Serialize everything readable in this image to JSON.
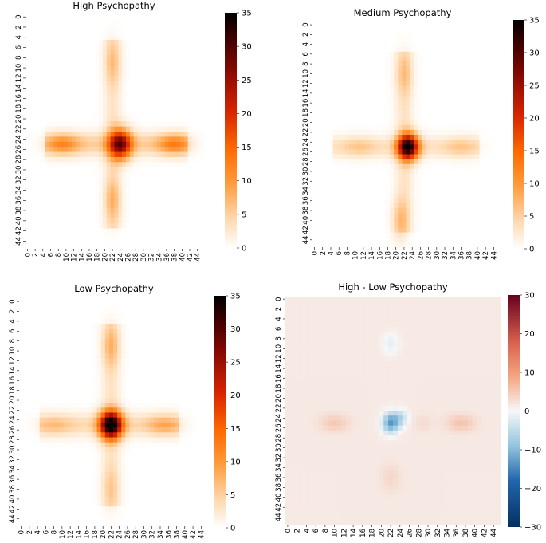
{
  "chart_data": [
    {
      "type": "heatmap",
      "title": "High Psychopathy",
      "grid_size": 46,
      "x_tick_labels": [
        "0",
        "2",
        "4",
        "6",
        "8",
        "10",
        "12",
        "14",
        "16",
        "18",
        "20",
        "22",
        "24",
        "26",
        "28",
        "30",
        "32",
        "34",
        "36",
        "38",
        "40",
        "42",
        "44"
      ],
      "y_tick_labels": [
        "0",
        "2",
        "4",
        "6",
        "8",
        "10",
        "12",
        "14",
        "16",
        "18",
        "20",
        "22",
        "24",
        "26",
        "28",
        "30",
        "32",
        "34",
        "36",
        "38",
        "40",
        "42",
        "44"
      ],
      "colormap": "gist_heat_r",
      "colorbar_range": [
        0,
        35
      ],
      "colorbar_ticks": [
        "0",
        "5",
        "10",
        "15",
        "20",
        "25",
        "30",
        "35"
      ],
      "blobs": [
        {
          "x": 24,
          "y": 25,
          "sx": 2.0,
          "sy": 2.0,
          "value": 24
        },
        {
          "x": 9,
          "y": 25,
          "sx": 3.0,
          "sy": 1.4,
          "value": 7
        },
        {
          "x": 38,
          "y": 25,
          "sx": 3.0,
          "sy": 1.4,
          "value": 8
        },
        {
          "x": 22,
          "y": 9,
          "sx": 1.4,
          "sy": 3.0,
          "value": 4
        },
        {
          "x": 22,
          "y": 36,
          "sx": 1.4,
          "sy": 3.0,
          "value": 5
        }
      ],
      "arms": [
        {
          "axis": "horizontal",
          "at": 25,
          "from": 5,
          "to": 41,
          "width": 1.6,
          "value": 5
        },
        {
          "axis": "vertical",
          "at": 22,
          "from": 5,
          "to": 41,
          "width": 1.6,
          "value": 3
        }
      ]
    },
    {
      "type": "heatmap",
      "title": "Medium Psychopathy",
      "grid_size": 46,
      "x_tick_labels": [
        "0",
        "2",
        "4",
        "6",
        "8",
        "10",
        "12",
        "14",
        "16",
        "18",
        "20",
        "22",
        "24",
        "26",
        "28",
        "30",
        "32",
        "34",
        "36",
        "38",
        "40",
        "42",
        "44"
      ],
      "y_tick_labels": [
        "0",
        "2",
        "4",
        "6",
        "8",
        "10",
        "12",
        "14",
        "16",
        "18",
        "20",
        "22",
        "24",
        "26",
        "28",
        "30",
        "32",
        "34",
        "36",
        "38",
        "40",
        "42",
        "44"
      ],
      "colormap": "gist_heat_r",
      "colorbar_range": [
        0,
        35
      ],
      "colorbar_ticks": [
        "0",
        "5",
        "10",
        "15",
        "20",
        "25",
        "30",
        "35"
      ],
      "blobs": [
        {
          "x": 23,
          "y": 25,
          "sx": 1.8,
          "sy": 1.8,
          "value": 32
        },
        {
          "x": 11,
          "y": 25,
          "sx": 3.0,
          "sy": 1.4,
          "value": 3
        },
        {
          "x": 36,
          "y": 25,
          "sx": 3.0,
          "sy": 1.4,
          "value": 3
        },
        {
          "x": 22,
          "y": 10,
          "sx": 1.4,
          "sy": 3.0,
          "value": 4
        },
        {
          "x": 21,
          "y": 40,
          "sx": 1.4,
          "sy": 3.0,
          "value": 5
        }
      ],
      "arms": [
        {
          "axis": "horizontal",
          "at": 25,
          "from": 5,
          "to": 40,
          "width": 1.6,
          "value": 3
        },
        {
          "axis": "vertical",
          "at": 22,
          "from": 6,
          "to": 42,
          "width": 1.6,
          "value": 3
        }
      ]
    },
    {
      "type": "heatmap",
      "title": "Low Psychopathy",
      "grid_size": 46,
      "x_tick_labels": [
        "0",
        "2",
        "4",
        "6",
        "8",
        "10",
        "12",
        "14",
        "16",
        "18",
        "20",
        "22",
        "24",
        "26",
        "28",
        "30",
        "32",
        "34",
        "36",
        "38",
        "40",
        "42",
        "44"
      ],
      "y_tick_labels": [
        "0",
        "2",
        "4",
        "6",
        "8",
        "10",
        "12",
        "14",
        "16",
        "18",
        "20",
        "22",
        "24",
        "26",
        "28",
        "30",
        "32",
        "34",
        "36",
        "38",
        "40",
        "42",
        "44"
      ],
      "colormap": "gist_heat_r",
      "colorbar_range": [
        0,
        35
      ],
      "colorbar_ticks": [
        "0",
        "5",
        "10",
        "15",
        "20",
        "25",
        "30",
        "35"
      ],
      "blobs": [
        {
          "x": 22,
          "y": 25,
          "sx": 1.9,
          "sy": 1.9,
          "value": 33
        },
        {
          "x": 8,
          "y": 25,
          "sx": 3.0,
          "sy": 1.4,
          "value": 3
        },
        {
          "x": 35,
          "y": 25,
          "sx": 3.0,
          "sy": 1.4,
          "value": 5
        },
        {
          "x": 22,
          "y": 9,
          "sx": 1.4,
          "sy": 3.0,
          "value": 5
        },
        {
          "x": 22,
          "y": 38,
          "sx": 1.4,
          "sy": 3.0,
          "value": 3
        }
      ],
      "arms": [
        {
          "axis": "horizontal",
          "at": 25,
          "from": 5,
          "to": 38,
          "width": 1.6,
          "value": 4
        },
        {
          "axis": "vertical",
          "at": 22,
          "from": 5,
          "to": 41,
          "width": 1.6,
          "value": 3
        }
      ]
    },
    {
      "type": "heatmap",
      "title": "High - Low Psychopathy",
      "grid_size": 46,
      "x_tick_labels": [
        "0",
        "2",
        "4",
        "6",
        "8",
        "10",
        "12",
        "14",
        "16",
        "18",
        "20",
        "22",
        "24",
        "26",
        "28",
        "30",
        "32",
        "34",
        "36",
        "38",
        "40",
        "42",
        "44"
      ],
      "y_tick_labels": [
        "0",
        "2",
        "4",
        "6",
        "8",
        "10",
        "12",
        "14",
        "16",
        "18",
        "20",
        "22",
        "24",
        "26",
        "28",
        "30",
        "32",
        "34",
        "36",
        "38",
        "40",
        "42",
        "44"
      ],
      "colormap": "RdBu_r",
      "colorbar_range": [
        -30,
        30
      ],
      "colorbar_ticks": [
        "30",
        "20",
        "10",
        "0",
        "−10",
        "−20",
        "−30"
      ],
      "background_value": 1.5,
      "blobs": [
        {
          "x": 22,
          "y": 25,
          "sx": 1.2,
          "sy": 1.4,
          "value": -14
        },
        {
          "x": 24,
          "y": 24,
          "sx": 1.2,
          "sy": 1.2,
          "value": -6
        },
        {
          "x": 10,
          "y": 25,
          "sx": 2.2,
          "sy": 1.2,
          "value": 3.5
        },
        {
          "x": 37,
          "y": 25,
          "sx": 2.2,
          "sy": 1.2,
          "value": 4
        },
        {
          "x": 29,
          "y": 25,
          "sx": 1.5,
          "sy": 1.2,
          "value": 1.5
        },
        {
          "x": 22,
          "y": 9,
          "sx": 1.2,
          "sy": 1.5,
          "value": -3
        },
        {
          "x": 22,
          "y": 36,
          "sx": 1.5,
          "sy": 2.0,
          "value": 2
        }
      ],
      "arms": []
    }
  ]
}
